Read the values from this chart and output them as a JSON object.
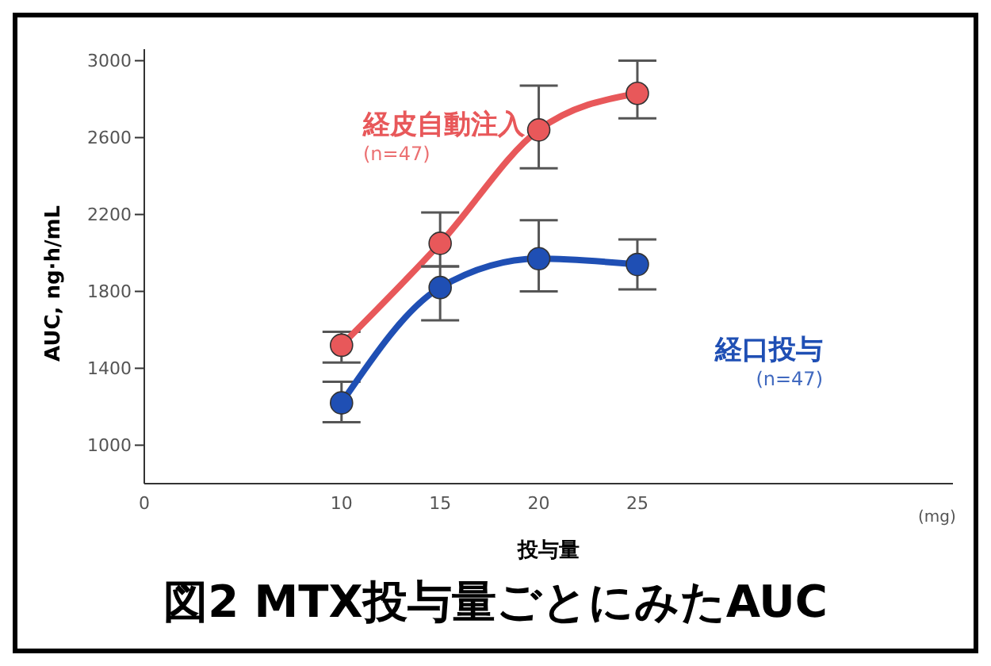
{
  "chart_data": {
    "type": "line",
    "title": "図2  MTX投与量ごとにみたAUC",
    "xlabel": "投与量",
    "ylabel": "AUC, ng·h/mL",
    "x": [
      10,
      15,
      20,
      25
    ],
    "series": [
      {
        "name": "経皮自動注入",
        "color": "#e8585a",
        "values": [
          1520,
          2050,
          2640,
          2830
        ],
        "errors": [
          [
            1430,
            1590
          ],
          [
            1930,
            2210
          ],
          [
            2440,
            2870
          ],
          [
            2700,
            3000
          ]
        ]
      },
      {
        "name": "経口投与",
        "color": "#1f4fb4",
        "values": [
          1220,
          1820,
          1970,
          1940
        ],
        "errors": [
          [
            1120,
            1330
          ],
          [
            1650,
            1930
          ],
          [
            1800,
            2170
          ],
          [
            1810,
            2070
          ]
        ]
      }
    ],
    "annotations": [
      "(n=47)",
      "(n=47)",
      "(mg)"
    ],
    "xlim": [
      0,
      41
    ],
    "xticks": [
      0,
      10,
      15,
      20,
      25
    ],
    "ylim": [
      800,
      3060
    ],
    "yticks": [
      1000,
      1400,
      1800,
      2200,
      2600,
      3000
    ],
    "grid": false,
    "legend": false,
    "marker": "circle",
    "line_style": "solid"
  }
}
